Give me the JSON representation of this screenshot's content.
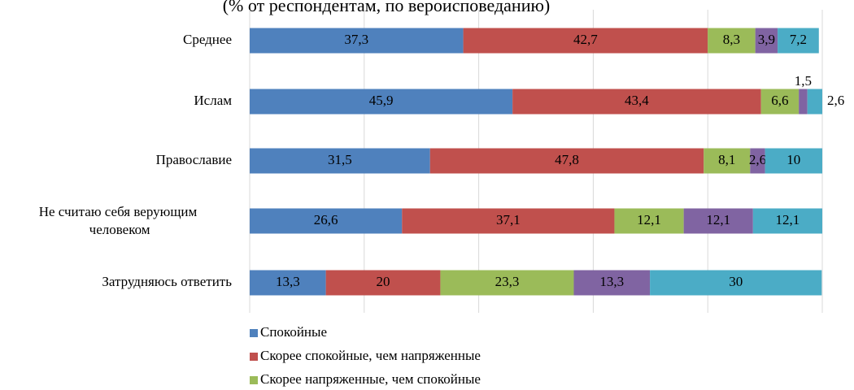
{
  "chart_data": {
    "type": "stacked_barh",
    "title": "(% от респондентам, по вероисповеданию)",
    "categories": [
      "Среднее",
      "Ислам",
      "Православие",
      "Не считаю себя верующим человеком",
      "Затрудняюсь ответить"
    ],
    "series": [
      {
        "name": "Спокойные",
        "color": "#4f81bd",
        "values": [
          37.3,
          45.9,
          31.5,
          26.6,
          13.3
        ],
        "value_labels": [
          "37,3",
          "45,9",
          "31,5",
          "26,6",
          "13,3"
        ]
      },
      {
        "name": "Скорее спокойные, чем напряженные",
        "color": "#c0504d",
        "values": [
          42.7,
          43.4,
          47.8,
          37.1,
          20
        ],
        "value_labels": [
          "42,7",
          "43,4",
          "47,8",
          "37,1",
          "20"
        ]
      },
      {
        "name": "Скорее напряженные, чем спокойные",
        "color": "#9bbb59",
        "values": [
          8.3,
          6.6,
          8.1,
          12.1,
          23.3
        ],
        "value_labels": [
          "8,3",
          "6,6",
          "8,1",
          "12,1",
          "23,3"
        ]
      },
      {
        "color": "#8064a2",
        "values": [
          3.9,
          1.5,
          2.6,
          12.1,
          13.3
        ],
        "value_labels": [
          "3,9",
          "1,5",
          "2,6",
          "12,1",
          "13,3"
        ]
      },
      {
        "color": "#4bacc6",
        "values": [
          7.2,
          2.6,
          10,
          12.1,
          30
        ],
        "value_labels": [
          "7,2",
          "2,6",
          "10",
          "12,1",
          "30"
        ]
      }
    ],
    "xlim": [
      0,
      100
    ],
    "xticks": [
      0,
      20,
      40,
      60,
      80,
      100
    ],
    "grid": true
  }
}
